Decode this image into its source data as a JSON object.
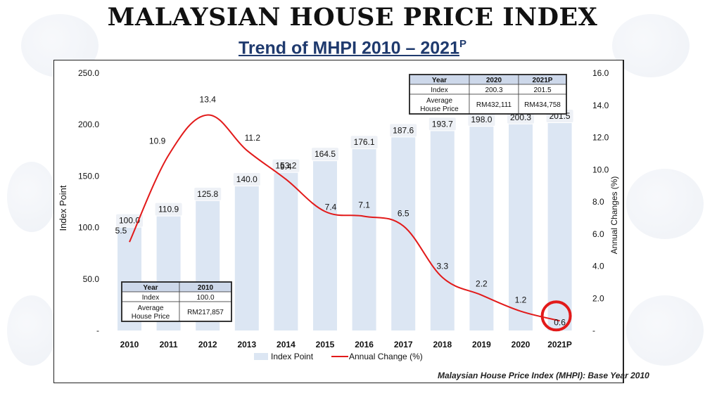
{
  "header": {
    "title": "MALAYSIAN HOUSE PRICE INDEX",
    "subtitle_main": "Trend of MHPI  2010 – 2021",
    "subtitle_sup": "P"
  },
  "footnote": "Malaysian House Price Index (MHPI): Base Year 2010",
  "colors": {
    "bar": "#dce6f3",
    "line": "#e21a1a",
    "highlight_circle": "#e21a1a"
  },
  "chart_data": {
    "type": "bar",
    "categories": [
      "2010",
      "2011",
      "2012",
      "2013",
      "2014",
      "2015",
      "2016",
      "2017",
      "2018",
      "2019",
      "2020",
      "2021P"
    ],
    "series": [
      {
        "name": "Index Point",
        "type": "bar",
        "axis": "left",
        "values": [
          100.0,
          110.9,
          125.8,
          140.0,
          153.2,
          164.5,
          176.1,
          187.6,
          193.7,
          198.0,
          200.3,
          201.5
        ],
        "labels": [
          "100.0",
          "110.9",
          "125.8",
          "140.0",
          "153.2",
          "164.5",
          "176.1",
          "187.6",
          "193.7",
          "198.0",
          "200.3",
          "201.5"
        ]
      },
      {
        "name": "Annual Change (%)",
        "type": "line",
        "axis": "right",
        "values": [
          5.5,
          10.9,
          13.4,
          11.2,
          9.4,
          7.4,
          7.1,
          6.5,
          3.3,
          2.2,
          1.2,
          0.6
        ],
        "labels": [
          "5.5",
          "10.9",
          "13.4",
          "11.2",
          "9.4",
          "7.4",
          "7.1",
          "6.5",
          "3.3",
          "2.2",
          "1.2",
          "0.6"
        ]
      }
    ],
    "ylabel": "Index Point",
    "y2label": "Annual Changes (%)",
    "ylim": [
      0,
      250
    ],
    "y2lim": [
      0,
      16
    ],
    "yticks": [
      "250.0",
      "200.0",
      "150.0",
      "100.0",
      "50.0",
      "-"
    ],
    "y2ticks": [
      "16.0",
      "14.0",
      "12.0",
      "10.0",
      "8.0",
      "6.0",
      "4.0",
      "2.0",
      "-"
    ],
    "grid": false,
    "legend_position": "bottom",
    "highlight": "2021P",
    "tables": [
      {
        "position": "top-right",
        "rows": [
          [
            "Year",
            "2020",
            "2021P"
          ],
          [
            "Index",
            "200.3",
            "201.5"
          ],
          [
            "Average House Price",
            "RM432,111",
            "RM434,758"
          ]
        ]
      },
      {
        "position": "bottom-left",
        "rows": [
          [
            "Year",
            "2010"
          ],
          [
            "Index",
            "100.0"
          ],
          [
            "Average House Price",
            "RM217,857"
          ]
        ]
      }
    ]
  }
}
